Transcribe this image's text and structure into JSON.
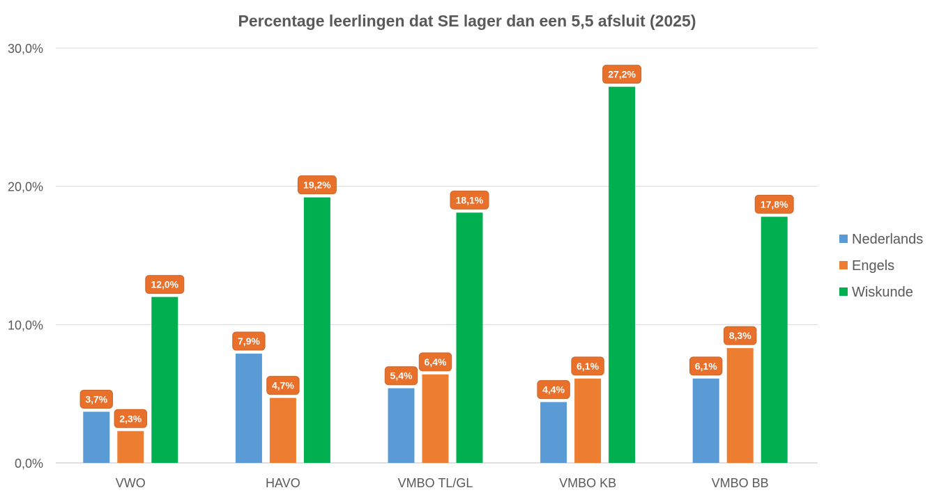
{
  "chart_data": {
    "type": "bar",
    "title": "Percentage leerlingen dat SE lager dan een 5,5 afsluit (2025)",
    "xlabel": "",
    "ylabel": "",
    "categories": [
      "VWO",
      "HAVO",
      "VMBO TL/GL",
      "VMBO KB",
      "VMBO BB"
    ],
    "series": [
      {
        "name": "Nederlands",
        "color": "#5b9bd5",
        "values": [
          3.7,
          7.9,
          5.4,
          4.4,
          6.1
        ],
        "labels": [
          "3,7%",
          "7,9%",
          "5,4%",
          "4,4%",
          "6,1%"
        ]
      },
      {
        "name": "Engels",
        "color": "#ed7d31",
        "values": [
          2.3,
          4.7,
          6.4,
          6.1,
          8.3
        ],
        "labels": [
          "2,3%",
          "4,7%",
          "6,4%",
          "6,1%",
          "8,3%"
        ]
      },
      {
        "name": "Wiskunde",
        "color": "#00b050",
        "values": [
          12.0,
          19.2,
          18.1,
          27.2,
          17.8
        ],
        "labels": [
          "12,0%",
          "19,2%",
          "18,1%",
          "27,2%",
          "17,8%"
        ]
      }
    ],
    "ylim": [
      0,
      30
    ],
    "yticks": [
      0,
      10,
      20,
      30
    ],
    "ytick_labels": [
      "0,0%",
      "10,0%",
      "20,0%",
      "30,0%"
    ],
    "grid": true,
    "legend_position": "right",
    "data_label_color": "#e8702a"
  }
}
